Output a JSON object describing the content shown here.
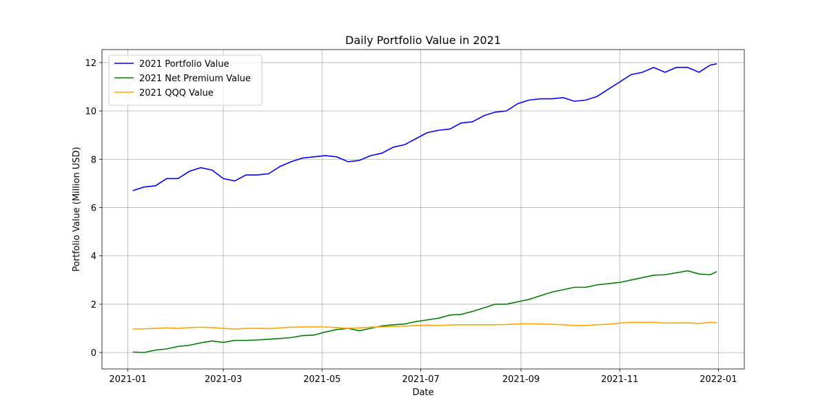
{
  "chart_data": {
    "type": "line",
    "title": "Daily Portfolio Value in 2021",
    "x_label": "Date",
    "y_label": "Portfolio Value (Million USD)",
    "x": [
      "2021-01-04",
      "2021-01-11",
      "2021-01-18",
      "2021-01-25",
      "2021-02-01",
      "2021-02-08",
      "2021-02-15",
      "2021-02-22",
      "2021-03-01",
      "2021-03-08",
      "2021-03-15",
      "2021-03-22",
      "2021-03-29",
      "2021-04-05",
      "2021-04-12",
      "2021-04-19",
      "2021-04-26",
      "2021-05-03",
      "2021-05-10",
      "2021-05-17",
      "2021-05-24",
      "2021-05-31",
      "2021-06-07",
      "2021-06-14",
      "2021-06-21",
      "2021-06-28",
      "2021-07-05",
      "2021-07-12",
      "2021-07-19",
      "2021-07-26",
      "2021-08-02",
      "2021-08-09",
      "2021-08-16",
      "2021-08-23",
      "2021-08-30",
      "2021-09-06",
      "2021-09-13",
      "2021-09-20",
      "2021-09-27",
      "2021-10-04",
      "2021-10-11",
      "2021-10-18",
      "2021-10-25",
      "2021-11-01",
      "2021-11-08",
      "2021-11-15",
      "2021-11-22",
      "2021-11-29",
      "2021-12-06",
      "2021-12-13",
      "2021-12-20",
      "2021-12-27",
      "2021-12-31"
    ],
    "series": [
      {
        "name": "2021 Portfolio Value",
        "color": "#0000ff",
        "values": [
          6.7,
          6.85,
          6.9,
          7.2,
          7.2,
          7.5,
          7.65,
          7.55,
          7.2,
          7.1,
          7.35,
          7.35,
          7.4,
          7.7,
          7.9,
          8.05,
          8.1,
          8.15,
          8.1,
          7.9,
          7.95,
          8.15,
          8.25,
          8.5,
          8.6,
          8.85,
          9.1,
          9.2,
          9.25,
          9.5,
          9.55,
          9.8,
          9.95,
          10.0,
          10.3,
          10.45,
          10.5,
          10.5,
          10.55,
          10.4,
          10.45,
          10.6,
          10.9,
          11.2,
          11.5,
          11.6,
          11.8,
          11.6,
          11.8,
          11.8,
          11.6,
          11.9,
          11.95
        ]
      },
      {
        "name": "2021 Net Premium Value",
        "color": "#008000",
        "values": [
          0.02,
          0,
          0.1,
          0.15,
          0.25,
          0.3,
          0.4,
          0.48,
          0.42,
          0.5,
          0.5,
          0.52,
          0.55,
          0.58,
          0.62,
          0.7,
          0.72,
          0.85,
          0.95,
          1.0,
          0.9,
          1.0,
          1.1,
          1.15,
          1.18,
          1.28,
          1.35,
          1.42,
          1.55,
          1.58,
          1.7,
          1.85,
          2.0,
          2.0,
          2.1,
          2.2,
          2.35,
          2.5,
          2.6,
          2.7,
          2.7,
          2.8,
          2.85,
          2.9,
          3.0,
          3.1,
          3.2,
          3.22,
          3.3,
          3.38,
          3.25,
          3.22,
          3.35
        ]
      },
      {
        "name": "2021 QQQ Value",
        "color": "#ffa500",
        "values": [
          0.97,
          0.98,
          1.0,
          1.02,
          1.0,
          1.03,
          1.05,
          1.03,
          1.0,
          0.97,
          1.0,
          1.0,
          0.99,
          1.02,
          1.05,
          1.06,
          1.06,
          1.06,
          1.03,
          1.0,
          1.02,
          1.05,
          1.06,
          1.08,
          1.09,
          1.12,
          1.13,
          1.12,
          1.14,
          1.15,
          1.15,
          1.15,
          1.15,
          1.16,
          1.18,
          1.19,
          1.18,
          1.17,
          1.15,
          1.12,
          1.12,
          1.15,
          1.17,
          1.22,
          1.25,
          1.24,
          1.25,
          1.22,
          1.22,
          1.23,
          1.2,
          1.25,
          1.24
        ]
      }
    ],
    "xlim": [
      "2020-12-16",
      "2022-01-17"
    ],
    "xticks": [
      {
        "value": "2021-01-01",
        "label": "2021-01"
      },
      {
        "value": "2021-03-01",
        "label": "2021-03"
      },
      {
        "value": "2021-05-01",
        "label": "2021-05"
      },
      {
        "value": "2021-07-01",
        "label": "2021-07"
      },
      {
        "value": "2021-09-01",
        "label": "2021-09"
      },
      {
        "value": "2021-11-01",
        "label": "2021-11"
      },
      {
        "value": "2022-01-01",
        "label": "2022-01"
      }
    ],
    "ylim": [
      -0.68,
      12.54
    ],
    "yticks": [
      0,
      2,
      4,
      6,
      8,
      10,
      12
    ],
    "grid": true,
    "legend": "upper left"
  }
}
